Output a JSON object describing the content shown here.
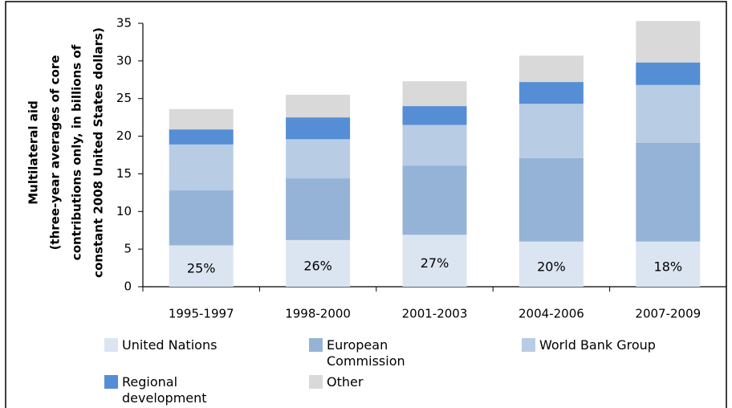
{
  "chart_data": {
    "type": "stacked_bar",
    "y_label": [
      "Multilateral aid",
      "(three-year averages of core",
      "contributions only, in billions of",
      "constant 2008 United States dollars)"
    ],
    "categories": [
      "1995-1997",
      "1998-2000",
      "2001-2003",
      "2004-2006",
      "2007-2009"
    ],
    "series": [
      {
        "name": "United Nations",
        "color": "#dbe5f1",
        "values": [
          5.5,
          6.2,
          6.9,
          6.0,
          6.0
        ]
      },
      {
        "name": "European Commission",
        "color": "#95b3d7",
        "values": [
          7.3,
          8.2,
          9.2,
          11.1,
          13.1
        ]
      },
      {
        "name": "World Bank Group",
        "color": "#b8cce4",
        "values": [
          6.1,
          5.2,
          5.4,
          7.2,
          7.7
        ]
      },
      {
        "name": "Regional development banks",
        "color": "#558ed5",
        "values": [
          2.0,
          2.9,
          2.5,
          2.9,
          3.0
        ]
      },
      {
        "name": "Other",
        "color": "#d9d9d9",
        "values": [
          2.7,
          3.0,
          3.3,
          3.5,
          5.5
        ]
      }
    ],
    "annotations": [
      "25%",
      "26%",
      "27%",
      "20%",
      "18%"
    ],
    "ylim": [
      0,
      35
    ],
    "yticks": [
      0,
      5,
      10,
      15,
      20,
      25,
      30,
      35
    ]
  }
}
